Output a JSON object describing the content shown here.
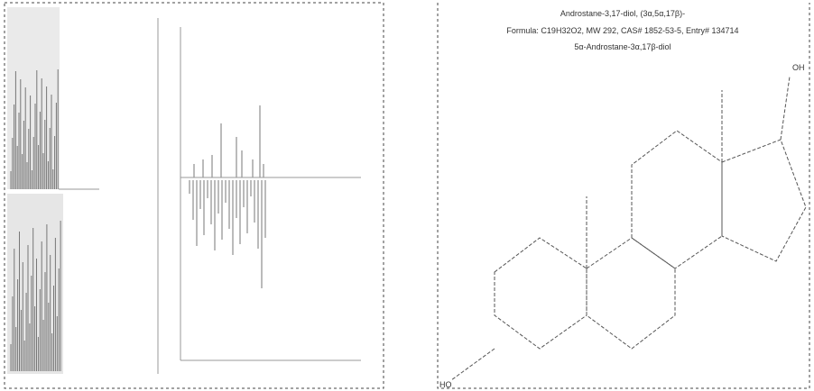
{
  "structure_panel": {
    "title": "Androstane-3,17-diol, (3α,5α,17β)-",
    "formula_line": "Formula: C19H32O2, MW 292, CAS# 1852-53-5, Entry# 134714",
    "synonym": "5α-Androstane-3α,17β-diol",
    "labels": [
      "OH",
      "HO"
    ]
  }
}
